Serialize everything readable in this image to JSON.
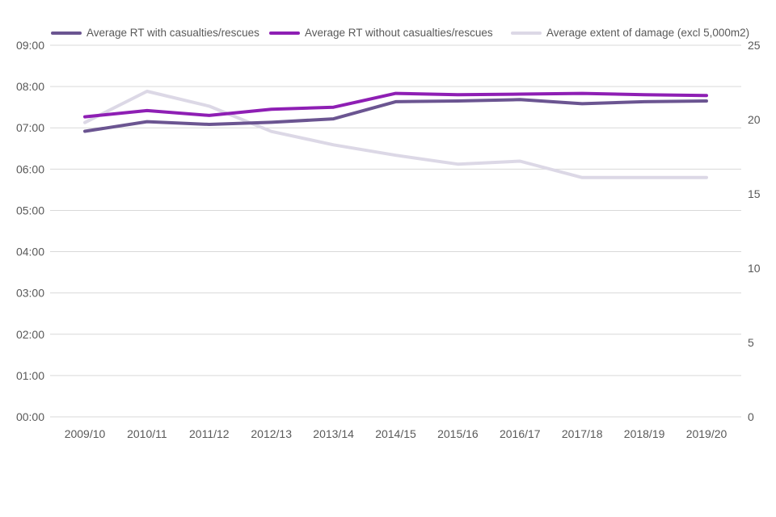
{
  "colors": {
    "background": "#FFFFFF",
    "grid": "#D9D9D9",
    "text": "#595959",
    "series_with": "#6B5591",
    "series_without": "#8E1FB4",
    "series_damage": "#DCD8E6"
  },
  "chart_data": {
    "type": "line",
    "title": "",
    "xlabel": "",
    "ylabel_left": "",
    "ylabel_right": "",
    "categories": [
      "2009/10",
      "2010/11",
      "2011/12",
      "2012/13",
      "2013/14",
      "2014/15",
      "2015/16",
      "2016/17",
      "2017/18",
      "2018/19",
      "2019/20"
    ],
    "series": [
      {
        "name": "Average RT with casualties/rescues",
        "axis": "left",
        "color": "#6B5591",
        "values_hhmm": [
          "06:55",
          "07:09",
          "07:05",
          "07:08",
          "07:13",
          "07:38",
          "07:39",
          "07:41",
          "07:35",
          "07:38",
          "07:39"
        ]
      },
      {
        "name": "Average RT without casualties/rescues",
        "axis": "left",
        "color": "#8E1FB4",
        "values_hhmm": [
          "07:16",
          "07:25",
          "07:18",
          "07:27",
          "07:30",
          "07:50",
          "07:48",
          "07:49",
          "07:50",
          "07:48",
          "07:47"
        ]
      },
      {
        "name": "Average extent of damage (excl 5,000m2)",
        "axis": "right",
        "color": "#DCD8E6",
        "values": [
          19.8,
          21.9,
          20.9,
          19.2,
          18.3,
          17.6,
          17.0,
          17.2,
          16.1,
          16.1,
          16.1
        ]
      }
    ],
    "draw_order": [
      2,
      0,
      1
    ],
    "left_axis": {
      "ticks": [
        "00:00",
        "01:00",
        "02:00",
        "03:00",
        "04:00",
        "05:00",
        "06:00",
        "07:00",
        "08:00",
        "09:00"
      ],
      "range_hours": [
        0,
        9
      ]
    },
    "right_axis": {
      "ticks": [
        "0",
        "5",
        "10",
        "15",
        "20",
        "25"
      ],
      "range": [
        0,
        25
      ]
    },
    "grid": true,
    "legend_position": "top"
  }
}
